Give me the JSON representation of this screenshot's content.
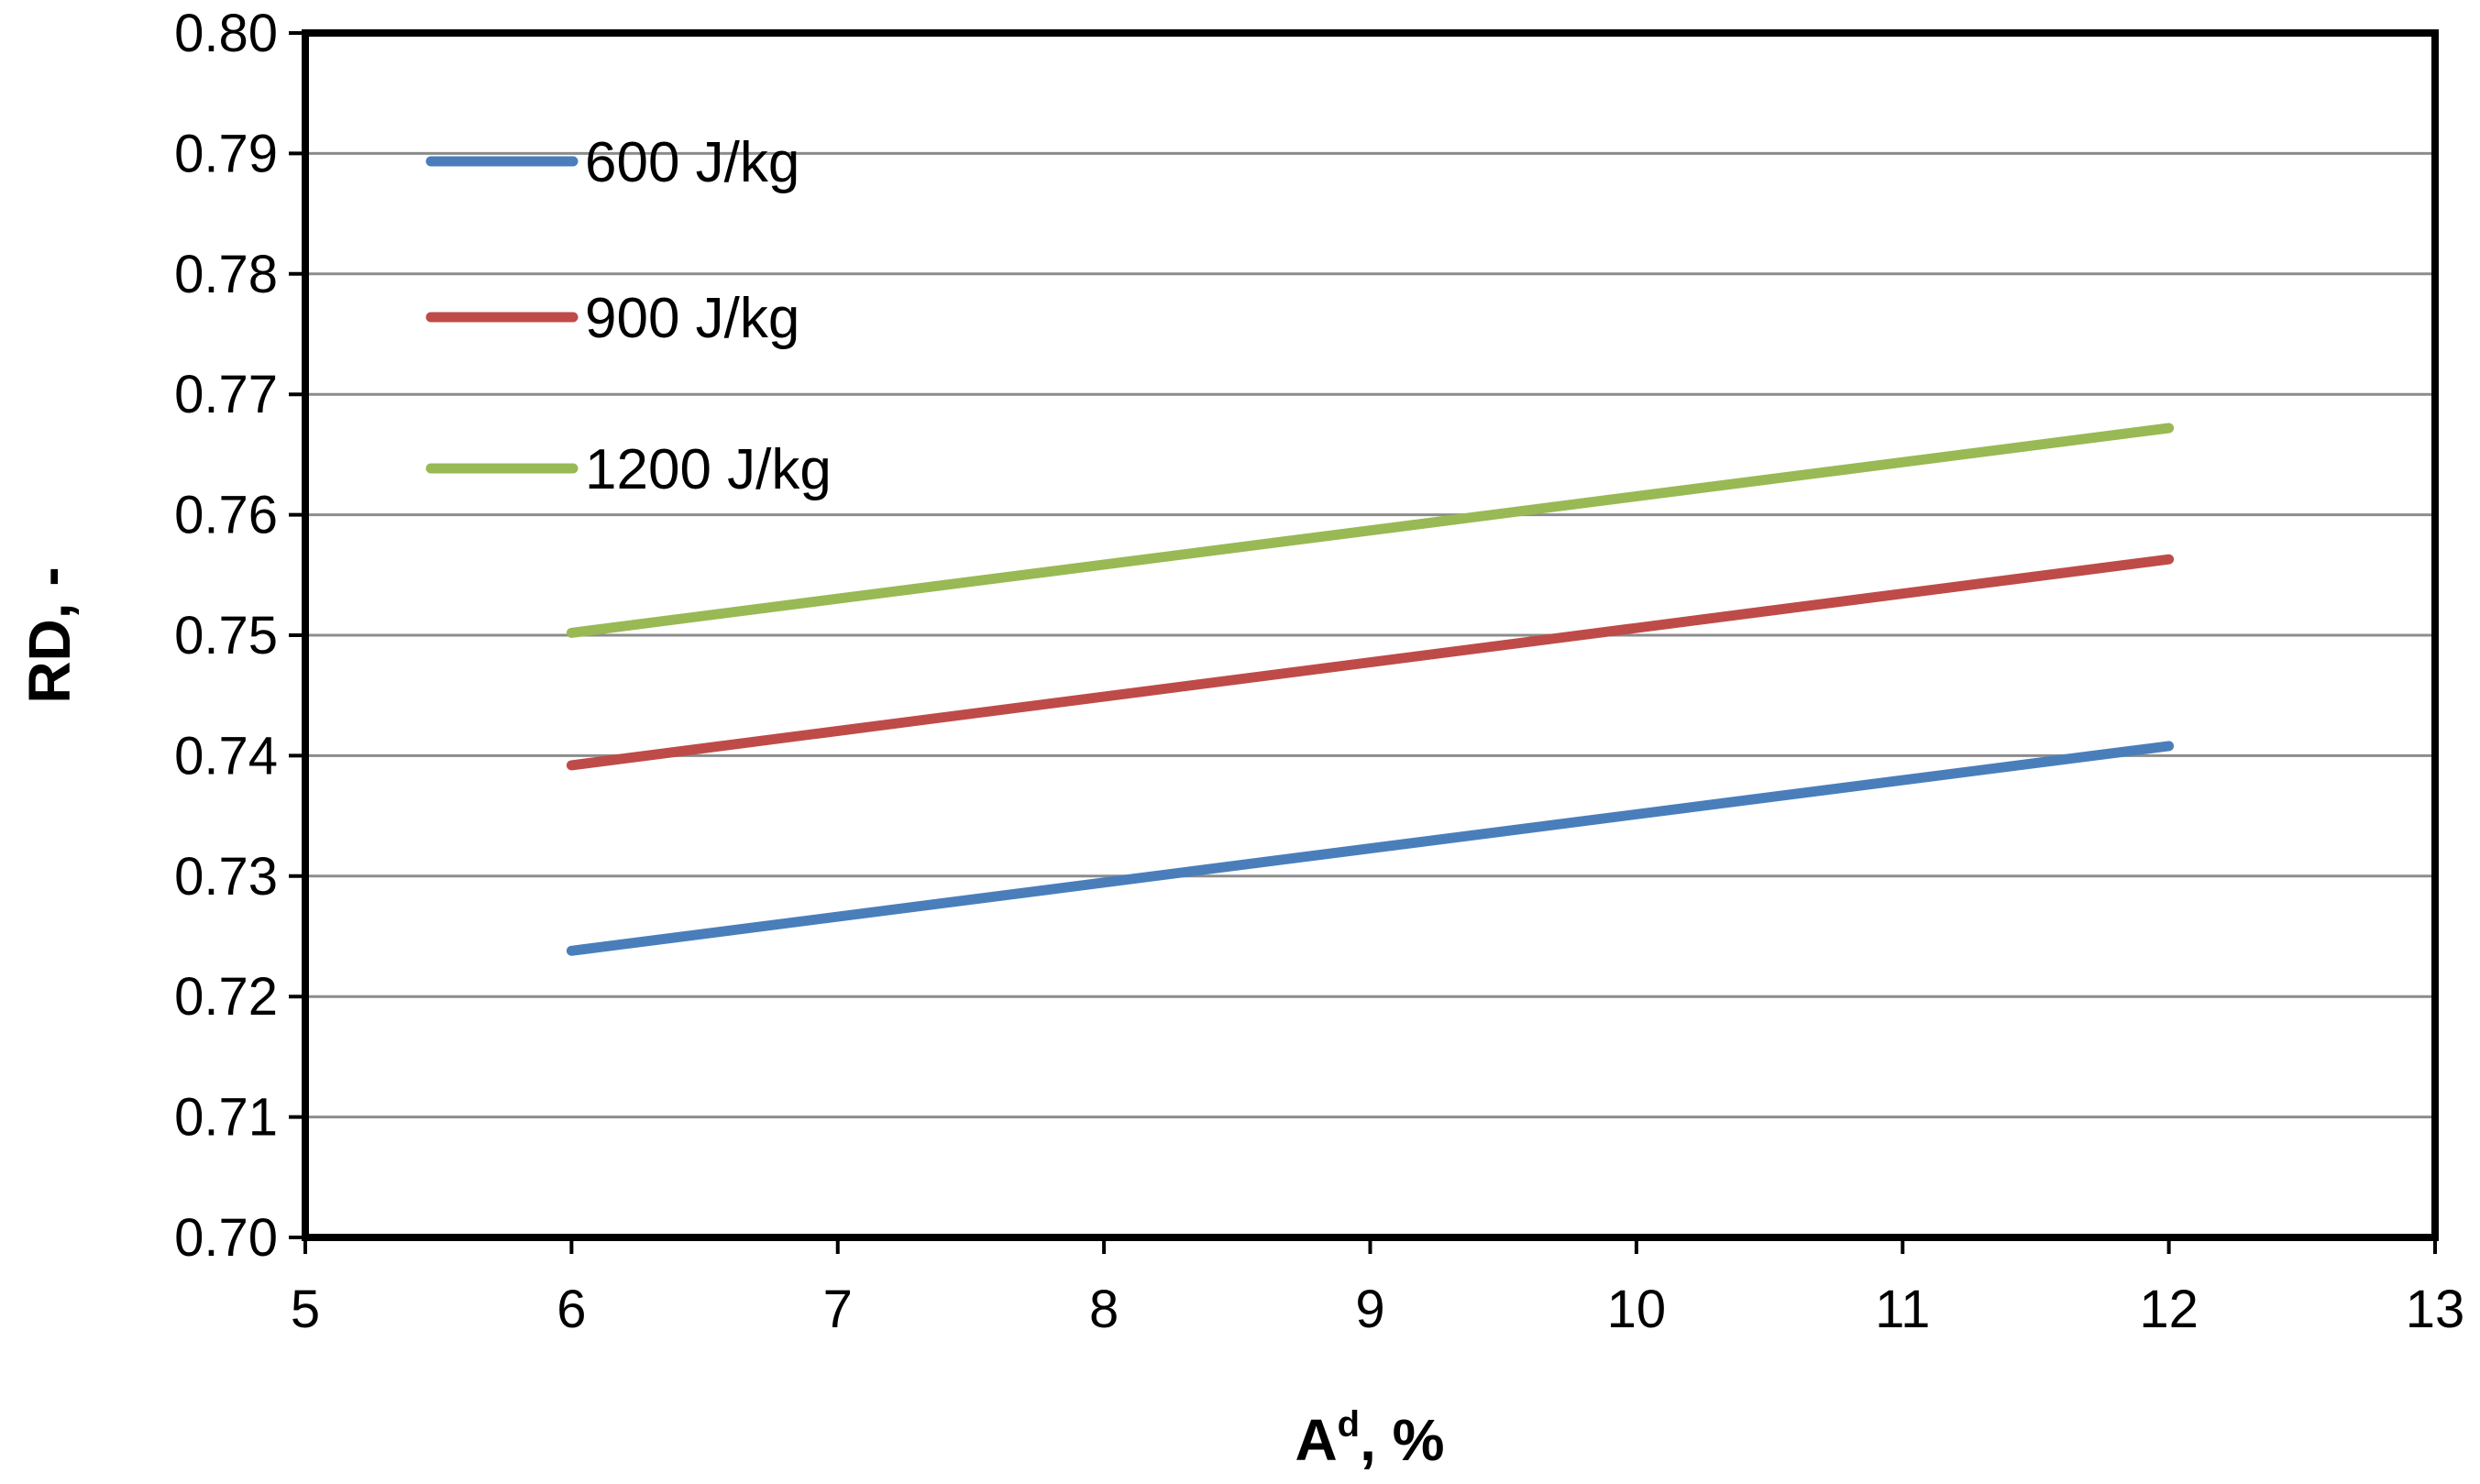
{
  "chart_data": {
    "type": "line",
    "title": "",
    "xlabel": {
      "main": "A",
      "sup": "d",
      "rest": ", %"
    },
    "ylabel": "RD, -",
    "xlim": [
      5,
      13
    ],
    "ylim": [
      0.7,
      0.8
    ],
    "x_ticks": [
      "5",
      "6",
      "7",
      "8",
      "9",
      "10",
      "11",
      "12",
      "13"
    ],
    "y_ticks": [
      "0.70",
      "0.71",
      "0.72",
      "0.73",
      "0.74",
      "0.75",
      "0.76",
      "0.77",
      "0.78",
      "0.79",
      "0.80"
    ],
    "grid": "horizontal",
    "legend_position": "top-left",
    "series": [
      {
        "name": "600 J/kg",
        "color": "#4A7EBB",
        "x": [
          6,
          12
        ],
        "y": [
          0.7238,
          0.7408
        ]
      },
      {
        "name": "900 J/kg",
        "color": "#BE4B48",
        "x": [
          6,
          12
        ],
        "y": [
          0.7392,
          0.7563
        ]
      },
      {
        "name": "1200 J/kg",
        "color": "#98B954",
        "x": [
          6,
          12
        ],
        "y": [
          0.7502,
          0.7672
        ]
      }
    ]
  }
}
